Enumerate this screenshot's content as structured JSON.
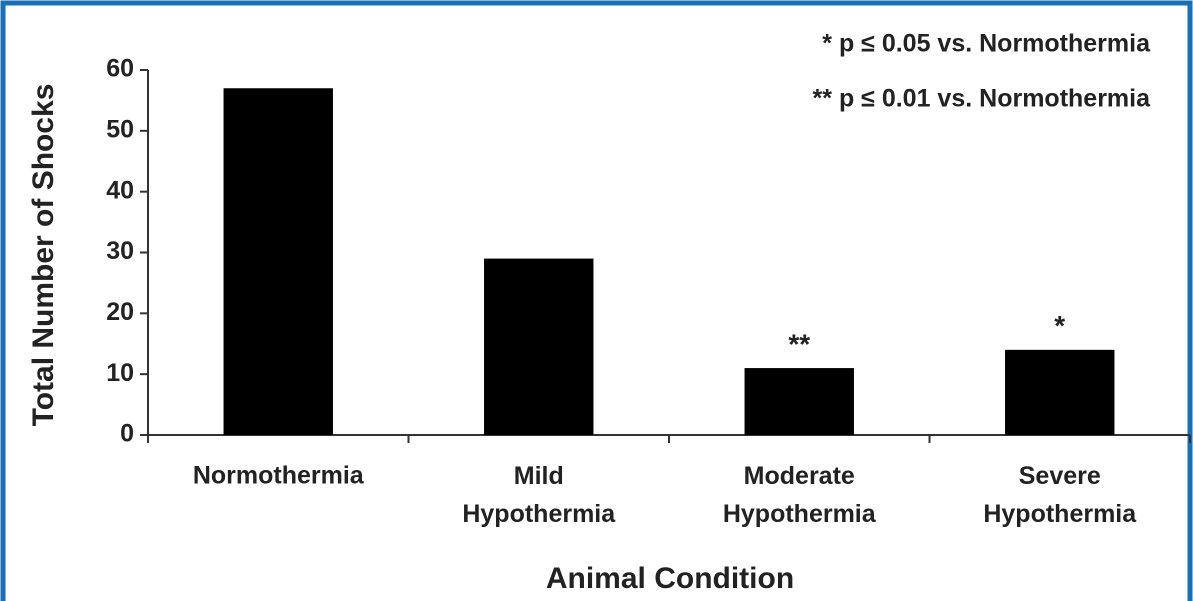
{
  "chart_data": {
    "type": "bar",
    "y_label": "Total Number of Shocks",
    "x_label": "Animal Condition",
    "categories": [
      "Normothermia",
      "Mild Hypothermia",
      "Moderate Hypothermia",
      "Severe Hypothermia"
    ],
    "values": [
      57,
      29,
      11,
      14
    ],
    "bar_labels": [
      null,
      null,
      "**",
      "*"
    ],
    "notes": [
      "* p ≤ 0.05 vs. Normothermia",
      "** p ≤ 0.01 vs. Normothermia"
    ],
    "color": "#000000",
    "ylim": [
      0,
      60
    ],
    "yticks": [
      0,
      10,
      20,
      30,
      40,
      50,
      60
    ],
    "grid": false
  }
}
